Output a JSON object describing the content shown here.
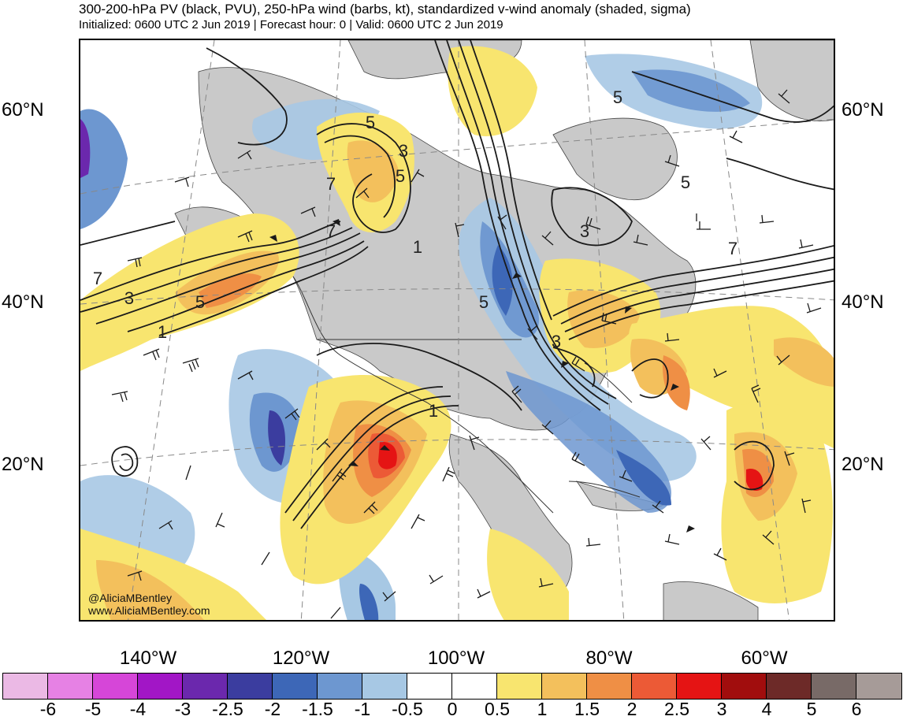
{
  "header": {
    "title": "300-200-hPa PV (black, PVU), 250-hPa wind (barbs, kt), standardized v-wind anomaly (shaded, sigma)",
    "subtitle": "Initialized: 0600 UTC 2 Jun 2019 | Forecast hour: 0 | Valid: 0600 UTC 2 Jun 2019"
  },
  "map": {
    "lat_labels": [
      "60°N",
      "40°N",
      "20°N"
    ],
    "lon_labels": [
      "140°W",
      "120°W",
      "100°W",
      "80°W",
      "60°W"
    ],
    "pv_contour_labels": [
      "5",
      "3",
      "7",
      "5",
      "7",
      "3",
      "5",
      "1",
      "7",
      "3",
      "5",
      "1",
      "5",
      "3",
      "1",
      "5",
      "7"
    ],
    "credit": {
      "handle": "@AliciaMBentley",
      "website": "www.AliciaMBentley.com"
    }
  },
  "colorbar": {
    "labels": [
      "-6",
      "-5",
      "-4",
      "-3",
      "-2.5",
      "-2",
      "-1.5",
      "-1",
      "-0.5",
      "0",
      "0.5",
      "1",
      "1.5",
      "2",
      "2.5",
      "3",
      "4",
      "5",
      "6"
    ],
    "colors": [
      "#ebb9e5",
      "#e681e4",
      "#d646d8",
      "#a216c6",
      "#6b28ad",
      "#3b3d9f",
      "#3d67b7",
      "#6d97d0",
      "#a7c8e4",
      "#ffffff",
      "#ffffff",
      "#f8e56f",
      "#f3c05c",
      "#ef8f45",
      "#ec5a36",
      "#e51414",
      "#a10d0d",
      "#6d2a28",
      "#786a67",
      "#a69b98"
    ]
  }
}
